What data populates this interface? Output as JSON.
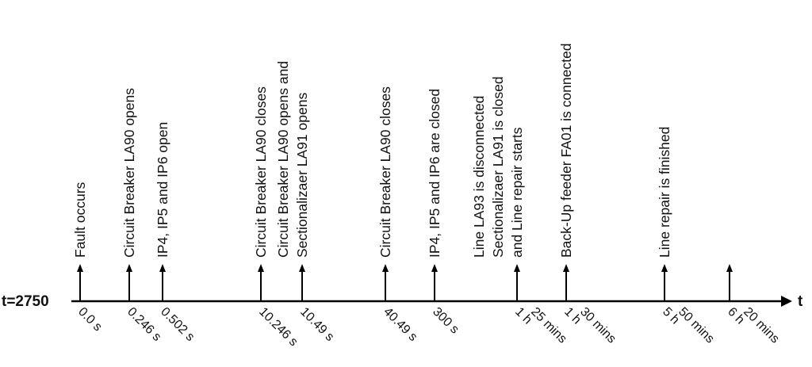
{
  "timeline": {
    "start_label": "t=2750",
    "axis_label": "t",
    "events": [
      {
        "lines": [
          "Fault occurs"
        ],
        "time": [
          "0.0 s"
        ]
      },
      {
        "lines": [
          "Circuit Breaker LA90 opens"
        ],
        "time": [
          "0.246 s"
        ]
      },
      {
        "lines": [
          "IP4, IP5 and IP6 open"
        ],
        "time": [
          "0.502 s"
        ]
      },
      {
        "lines": [
          "Circuit Breaker LA90 closes"
        ],
        "time": [
          "10.246 s"
        ]
      },
      {
        "lines": [
          "Circuit Breaker LA90 opens and",
          "Sectionalizaer LA91 opens"
        ],
        "time": [
          "10.49 s"
        ]
      },
      {
        "lines": [
          "Circuit Breaker LA90 closes"
        ],
        "time": [
          "40.49 s"
        ]
      },
      {
        "lines": [
          "IP4, IP5 and IP6 are closed"
        ],
        "time": [
          "300 s"
        ]
      },
      {
        "lines": [
          "Line LA93 is disconnected",
          "Sectionalizaer LA91 is closed",
          "and Line repair starts"
        ],
        "time": [
          "1 h",
          "25 mins"
        ]
      },
      {
        "lines": [
          "Back-Up feeder FA01 is connected"
        ],
        "time": [
          "1 h",
          "30 mins"
        ]
      },
      {
        "lines": [
          "Line repair is finished"
        ],
        "time": [
          "5 h",
          "50 mins"
        ]
      },
      {
        "lines": [],
        "time": [
          "6 h",
          "20 mins"
        ]
      }
    ]
  }
}
